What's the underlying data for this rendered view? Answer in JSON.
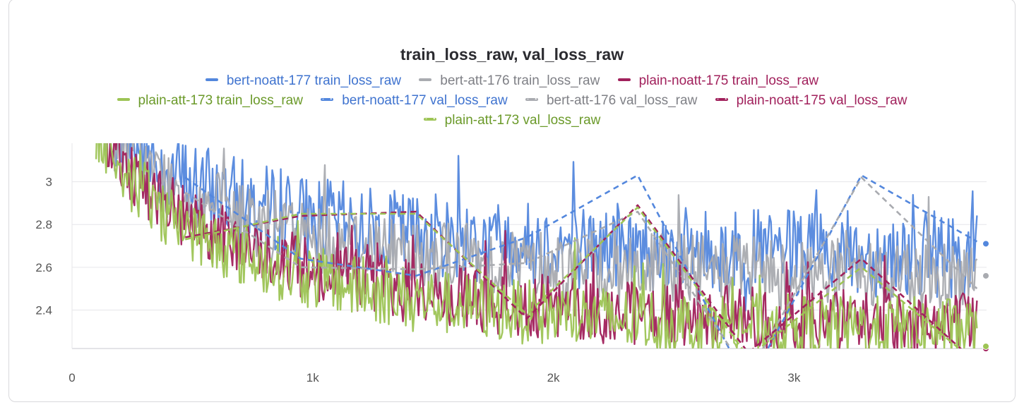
{
  "chart_data": {
    "type": "line",
    "title": "train_loss_raw, val_loss_raw",
    "xlabel": "",
    "ylabel": "",
    "xlim": [
      0,
      3800
    ],
    "ylim": [
      2.22,
      3.18
    ],
    "x_ticks": [
      0,
      1000,
      2000,
      3000
    ],
    "x_tick_labels": [
      "0",
      "1k",
      "2k",
      "3k"
    ],
    "y_ticks": [
      2.4,
      2.6,
      2.8,
      3.0
    ],
    "y_tick_labels": [
      "2.4",
      "2.6",
      "2.8",
      "3"
    ],
    "grid": "horizontal",
    "legend_position": "top",
    "series": [
      {
        "name": "bert-noatt-177 train_loss_raw",
        "style": "solid",
        "color": "#5387dd",
        "label_color": "#3f73cf",
        "train_noisy": true,
        "start": 3.15,
        "end": 2.65,
        "spread": 0.2,
        "x_start": 100,
        "x_end": 3760,
        "final": 2.71
      },
      {
        "name": "bert-att-176 train_loss_raw",
        "style": "solid",
        "color": "#a9abb0",
        "label_color": "#7f8086",
        "train_noisy": true,
        "start": 3.1,
        "end": 2.55,
        "spread": 0.17,
        "x_start": 100,
        "x_end": 3760,
        "final": 2.56
      },
      {
        "name": "plain-noatt-175 train_loss_raw",
        "style": "solid",
        "color": "#a1215c",
        "label_color": "#a1215c",
        "train_noisy": true,
        "start": 3.05,
        "end": 2.33,
        "spread": 0.15,
        "x_start": 100,
        "x_end": 3760,
        "final": 2.22
      },
      {
        "name": "plain-att-173 train_loss_raw",
        "style": "solid",
        "color": "#9dc455",
        "label_color": "#6b9a2a",
        "train_noisy": true,
        "start": 3.0,
        "end": 2.3,
        "spread": 0.15,
        "x_start": 100,
        "x_end": 3760,
        "final": 2.23
      },
      {
        "name": "bert-noatt-177 val_loss_raw",
        "style": "dashed",
        "color": "#5387dd",
        "label_color": "#3f73cf",
        "x": [
          470,
          950,
          1430,
          1890,
          2350,
          2810,
          3280,
          3760
        ],
        "y": [
          3.02,
          2.64,
          2.56,
          2.74,
          3.03,
          2.05,
          3.03,
          2.72
        ]
      },
      {
        "name": "bert-att-176 val_loss_raw",
        "style": "dashed",
        "color": "#a9abb0",
        "label_color": "#7f8086",
        "x": [
          470,
          950,
          1430,
          1890,
          2350,
          2810,
          3280,
          3760
        ],
        "y": [
          2.95,
          2.6,
          2.59,
          2.62,
          2.86,
          2.1,
          3.02,
          2.5
        ]
      },
      {
        "name": "plain-noatt-175 val_loss_raw",
        "style": "dashed",
        "color": "#a1215c",
        "label_color": "#a1215c",
        "x": [
          470,
          950,
          1430,
          1890,
          2350,
          2810,
          3280,
          3760
        ],
        "y": [
          2.74,
          2.84,
          2.86,
          2.36,
          2.89,
          2.2,
          2.64,
          2.15
        ]
      },
      {
        "name": "plain-att-173 val_loss_raw",
        "style": "dashed",
        "color": "#9dc455",
        "label_color": "#6b9a2a",
        "x": [
          470,
          950,
          1430,
          1890,
          2350,
          2810,
          3280,
          3760
        ],
        "y": [
          2.73,
          2.85,
          2.85,
          2.38,
          2.88,
          2.18,
          2.6,
          2.15
        ]
      }
    ]
  }
}
